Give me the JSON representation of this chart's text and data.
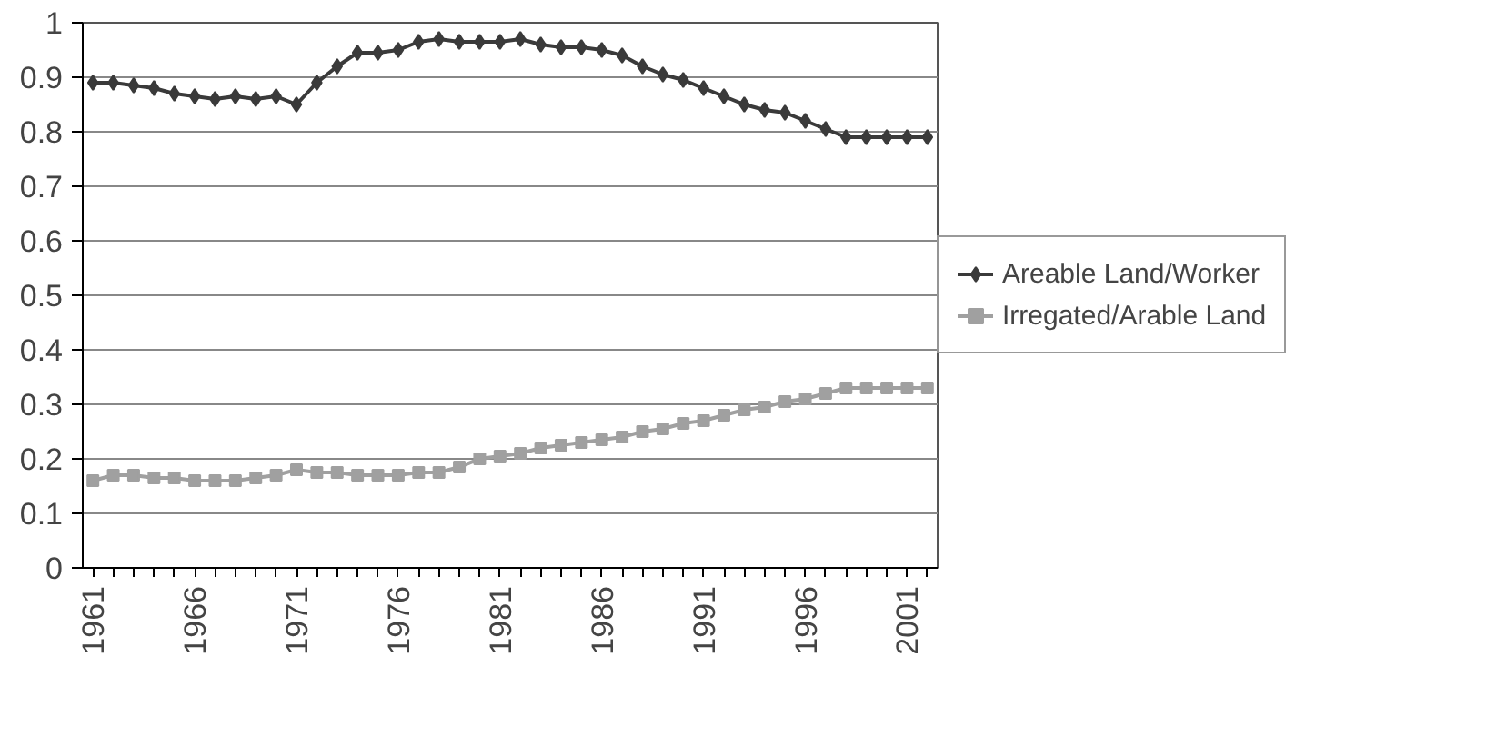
{
  "chart_data": {
    "type": "line",
    "categories": [
      "1961",
      null,
      null,
      null,
      null,
      "1966",
      null,
      null,
      null,
      null,
      "1971",
      null,
      null,
      null,
      null,
      "1976",
      null,
      null,
      null,
      null,
      "1981",
      null,
      null,
      null,
      null,
      "1986",
      null,
      null,
      null,
      null,
      "1991",
      null,
      null,
      null,
      null,
      "1996",
      null,
      null,
      null,
      null,
      "2001",
      null
    ],
    "series": [
      {
        "name": "Areable Land/Worker",
        "color": "#3a3a3a",
        "marker": "diamond",
        "values": [
          0.89,
          0.89,
          0.885,
          0.88,
          0.87,
          0.865,
          0.86,
          0.865,
          0.86,
          0.865,
          0.85,
          0.89,
          0.92,
          0.945,
          0.945,
          0.95,
          0.965,
          0.97,
          0.965,
          0.965,
          0.965,
          0.97,
          0.96,
          0.955,
          0.955,
          0.95,
          0.94,
          0.92,
          0.905,
          0.895,
          0.88,
          0.865,
          0.85,
          0.84,
          0.835,
          0.82,
          0.805,
          0.79,
          0.79,
          0.79,
          0.79,
          0.79
        ]
      },
      {
        "name": "Irregated/Arable Land",
        "color": "#a0a0a0",
        "marker": "square",
        "values": [
          0.16,
          0.17,
          0.17,
          0.165,
          0.165,
          0.16,
          0.16,
          0.16,
          0.165,
          0.17,
          0.18,
          0.175,
          0.175,
          0.17,
          0.17,
          0.17,
          0.175,
          0.175,
          0.185,
          0.2,
          0.205,
          0.21,
          0.22,
          0.225,
          0.23,
          0.235,
          0.24,
          0.25,
          0.255,
          0.265,
          0.27,
          0.28,
          0.29,
          0.295,
          0.305,
          0.31,
          0.32,
          0.33,
          0.33,
          0.33,
          0.33,
          0.33
        ]
      }
    ],
    "ylim": [
      0,
      1
    ],
    "yticks": [
      0,
      0.1,
      0.2,
      0.3,
      0.4,
      0.5,
      0.6,
      0.7,
      0.8,
      0.9,
      1
    ],
    "grid": "y",
    "legend": "right",
    "line_style": "solid"
  }
}
